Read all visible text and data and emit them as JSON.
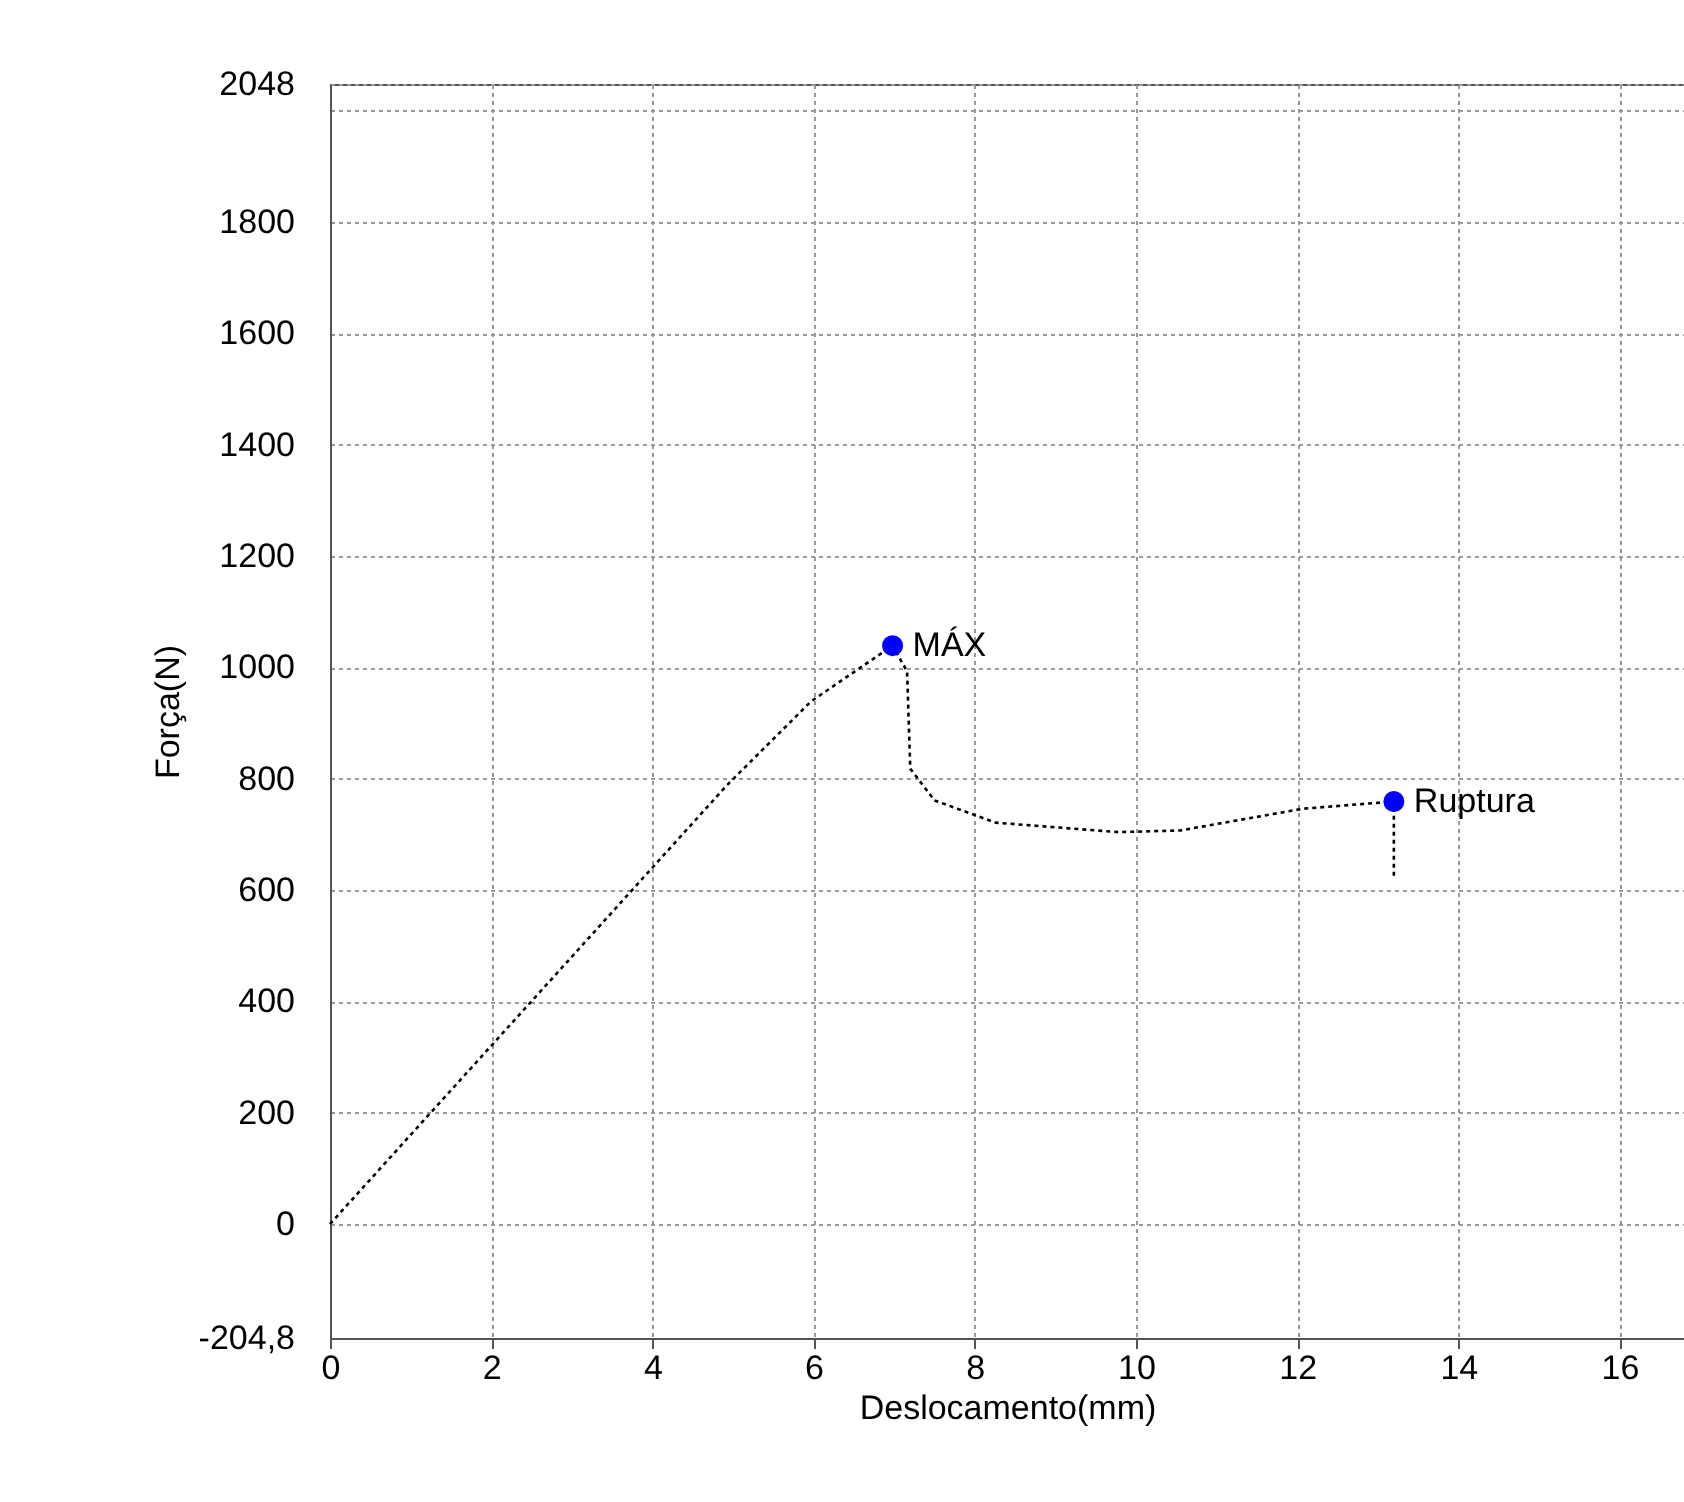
{
  "chart_data": {
    "type": "line",
    "xlabel": "Deslocamento(mm)",
    "ylabel": "Força(N)",
    "xlim": [
      0,
      16.8
    ],
    "ylim": [
      -204.8,
      2048
    ],
    "xticks": [
      0,
      2,
      4,
      6,
      8,
      10,
      12,
      14,
      16
    ],
    "yticks": [
      {
        "value": -204.8,
        "label": "-204,8"
      },
      0,
      200,
      400,
      600,
      800,
      1000,
      1200,
      1400,
      1600,
      1800,
      {
        "value": 2000,
        "label": null
      },
      2048
    ],
    "grid": true,
    "line_style": "dotted",
    "marker": "none",
    "series": [
      {
        "type": "line",
        "color": "#000000",
        "x": [
          0,
          4.93,
          5.97,
          6.98,
          7.16,
          7.2,
          7.5,
          8.26,
          9.78,
          10.55,
          12.07,
          13.2,
          13.2
        ],
        "values": [
          0,
          789,
          939,
          1039,
          993,
          818,
          761,
          721,
          704,
          707,
          746,
          759,
          625
        ]
      },
      {
        "type": "scatter",
        "color": "#0000ff",
        "marker": "circle",
        "x": [
          6.98,
          13.2
        ],
        "values": [
          1039,
          759
        ]
      }
    ],
    "annotations": [
      {
        "text": "MÁX",
        "x": 6.98,
        "y": 1039
      },
      {
        "text": "Ruptura",
        "x": 13.2,
        "y": 759
      }
    ]
  }
}
